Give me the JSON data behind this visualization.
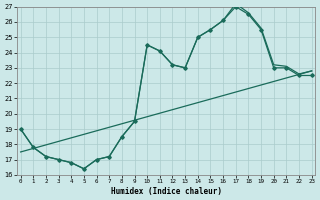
{
  "xlabel": "Humidex (Indice chaleur)",
  "bg_color": "#cce8e8",
  "grid_color": "#aacccc",
  "line_color": "#1a6b5a",
  "xlim": [
    -0.5,
    23.5
  ],
  "ylim": [
    16,
    27
  ],
  "yticks": [
    16,
    17,
    18,
    19,
    20,
    21,
    22,
    23,
    24,
    25,
    26,
    27
  ],
  "xticks": [
    0,
    1,
    2,
    3,
    4,
    5,
    6,
    7,
    8,
    9,
    10,
    11,
    12,
    13,
    14,
    15,
    16,
    17,
    18,
    19,
    20,
    21,
    22,
    23
  ],
  "line1_x": [
    0,
    1,
    2,
    3,
    4,
    5,
    6,
    7,
    8,
    9,
    10,
    11,
    12,
    13,
    14,
    15,
    16,
    17,
    18,
    19,
    20,
    21,
    22,
    23
  ],
  "line1_y": [
    19.0,
    17.8,
    17.2,
    17.0,
    16.8,
    16.4,
    17.0,
    17.2,
    18.5,
    19.5,
    24.5,
    24.1,
    23.2,
    23.0,
    25.0,
    25.5,
    26.1,
    27.2,
    26.6,
    25.6,
    23.2,
    23.1,
    22.6,
    22.8
  ],
  "line2_x": [
    0,
    1,
    2,
    3,
    4,
    5,
    6,
    7,
    8,
    9,
    10,
    11,
    12,
    13,
    14,
    15,
    16,
    17,
    18,
    19,
    20,
    21,
    22,
    23
  ],
  "line2_y": [
    19.0,
    17.8,
    17.2,
    17.0,
    16.8,
    16.4,
    17.0,
    17.2,
    18.5,
    19.5,
    24.5,
    24.1,
    23.2,
    23.0,
    25.0,
    25.5,
    26.1,
    27.0,
    26.5,
    25.5,
    23.0,
    23.0,
    22.5,
    22.5
  ],
  "line3_x": [
    0,
    23
  ],
  "line3_y": [
    17.5,
    22.8
  ]
}
